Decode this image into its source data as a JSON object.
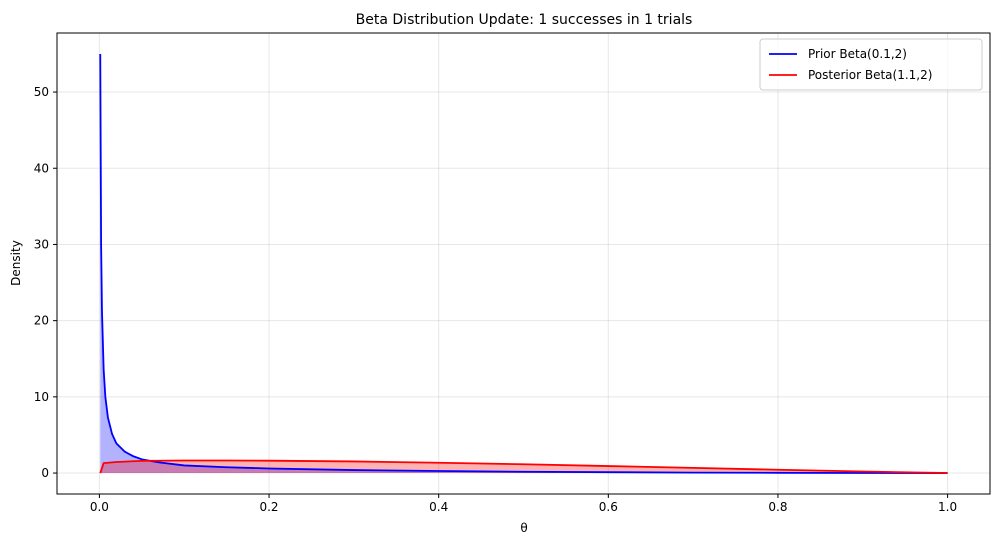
{
  "chart_data": {
    "type": "area",
    "title": "Beta Distribution Update: 1 successes in 1 trials",
    "xlabel": "θ",
    "ylabel": "Density",
    "xlim": [
      -0.05,
      1.05
    ],
    "ylim": [
      -2.75,
      57.75
    ],
    "x_ticks": [
      0.0,
      0.2,
      0.4,
      0.6,
      0.8,
      1.0
    ],
    "x_tick_labels": [
      "0.0",
      "0.2",
      "0.4",
      "0.6",
      "0.8",
      "1.0"
    ],
    "y_ticks": [
      0,
      10,
      20,
      30,
      40,
      50
    ],
    "y_tick_labels": [
      "0",
      "10",
      "20",
      "30",
      "40",
      "50"
    ],
    "grid": true,
    "legend_position": "top-right",
    "series": [
      {
        "name": "Prior Beta(0.1,2)",
        "color": "#0000ff",
        "fill_color": "#0000ff",
        "x": [
          0.001,
          0.002,
          0.003,
          0.005,
          0.007,
          0.01,
          0.015,
          0.02,
          0.03,
          0.04,
          0.05,
          0.07,
          0.1,
          0.15,
          0.2,
          0.3,
          0.4,
          0.5,
          0.6,
          0.7,
          0.8,
          0.9,
          1.0
        ],
        "y": [
          55.0,
          30.0,
          21.4,
          13.6,
          10.0,
          7.3,
          5.1,
          3.9,
          2.8,
          2.2,
          1.8,
          1.4,
          1.0,
          0.76,
          0.6,
          0.39,
          0.27,
          0.17,
          0.11,
          0.06,
          0.03,
          0.01,
          0.0
        ]
      },
      {
        "name": "Posterior Beta(1.1,2)",
        "color": "#ff0000",
        "fill_color": "#ff0000",
        "x": [
          0.001,
          0.005,
          0.01,
          0.02,
          0.05,
          0.1,
          0.15,
          0.2,
          0.3,
          0.4,
          0.5,
          0.6,
          0.7,
          0.8,
          0.9,
          1.0
        ],
        "y": [
          0.0,
          1.3,
          1.35,
          1.45,
          1.6,
          1.65,
          1.65,
          1.62,
          1.52,
          1.35,
          1.15,
          0.92,
          0.68,
          0.43,
          0.2,
          0.0
        ]
      }
    ]
  }
}
